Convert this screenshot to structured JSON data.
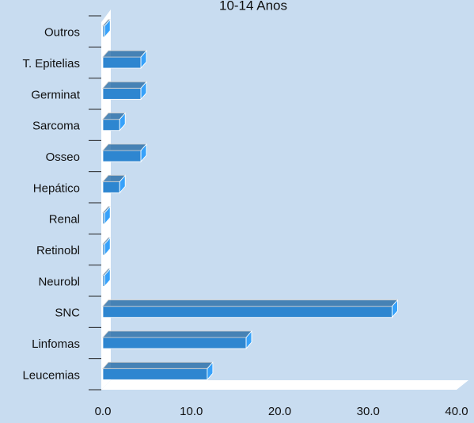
{
  "chart_data": {
    "type": "bar3d",
    "orientation": "horizontal",
    "title": "10-14 Anos",
    "categories": [
      "Outros",
      "T. Epitelias",
      "Germinat",
      "Sarcoma",
      "Osseo",
      "Hepático",
      "Renal",
      "Retinobl",
      "Neurobl",
      "SNC",
      "Linfomas",
      "Leucemias"
    ],
    "values": [
      0.2,
      4.3,
      4.3,
      1.9,
      4.3,
      1.9,
      0.2,
      0.2,
      0.2,
      32.7,
      16.2,
      11.8
    ],
    "color": "#2e86d0",
    "xlim": [
      0,
      40
    ],
    "xticks": [
      {
        "value": 0,
        "label": "0.0"
      },
      {
        "value": 10,
        "label": "10.0"
      },
      {
        "value": 20,
        "label": "20.0"
      },
      {
        "value": 30,
        "label": "30.0"
      },
      {
        "value": 40,
        "label": "40.0"
      }
    ]
  }
}
